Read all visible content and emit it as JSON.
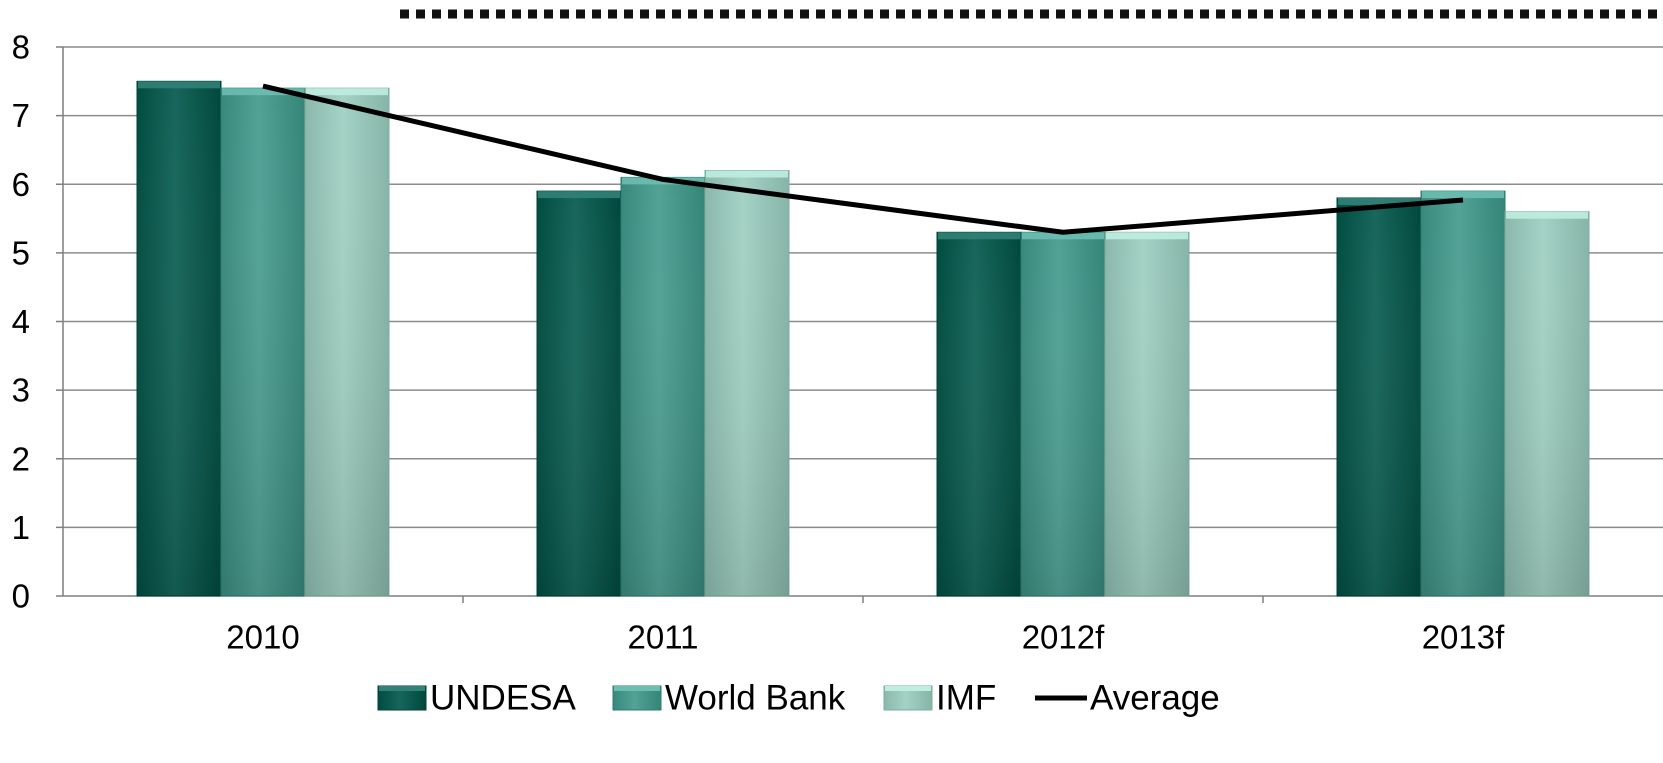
{
  "chart_data": {
    "type": "bar",
    "categories": [
      "2010",
      "2011",
      "2012f",
      "2013f"
    ],
    "series": [
      {
        "name": "UNDESA",
        "values": [
          7.5,
          5.9,
          5.3,
          5.8
        ],
        "color": "#0f5e53"
      },
      {
        "name": "World Bank",
        "values": [
          7.4,
          6.1,
          5.3,
          5.9
        ],
        "color": "#4a9a8e"
      },
      {
        "name": "IMF",
        "values": [
          7.4,
          6.2,
          5.3,
          5.6
        ],
        "color": "#9ccabd"
      }
    ],
    "line_series": {
      "name": "Average",
      "values": [
        7.43,
        6.07,
        5.3,
        5.77
      ],
      "color": "#000000"
    },
    "title": "",
    "xlabel": "",
    "ylabel": "",
    "ylim": [
      0,
      8
    ],
    "yticks": [
      "0",
      "1",
      "2",
      "3",
      "4",
      "5",
      "6",
      "7",
      "8"
    ],
    "grid": true,
    "legend_position": "bottom"
  }
}
